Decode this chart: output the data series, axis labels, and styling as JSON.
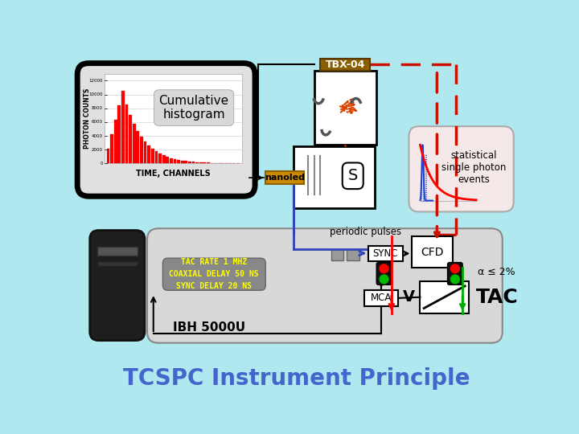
{
  "bg_color": "#b0e8f0",
  "title": "TCSPC Instrument Principle",
  "title_color": "#4466cc",
  "title_fontsize": 20,
  "histogram_label": "Cumulative\nhistogram",
  "histogram_xlabel": "TIME, CHANNELS",
  "histogram_ylabel": "PHOTON COUNTS",
  "tbx04_label": "TBX-04",
  "tbx04_bg": "#8B5E00",
  "nanoled_label": "nanoled",
  "nanoled_bg": "#cc8800",
  "S_label": "S",
  "sync_label": "SYNC",
  "cfd_label": "CFD",
  "mca_label": "MCA",
  "tac_label": "TAC",
  "V_label": "V",
  "ibh_label": "IBH 5000U",
  "periodic_label": "periodic pulses",
  "alpha_label": "α ≤ 2%",
  "tac_text": "TAC RATE 1 MHZ\nCOAXIAL DELAY 50 NS\nSYNC DELAY 20 NS",
  "stat_label": "statistical\nsingle photon\nevents"
}
